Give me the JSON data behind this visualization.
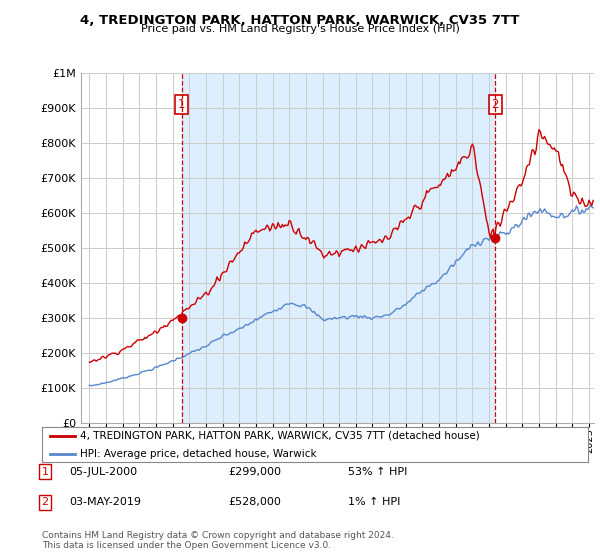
{
  "title": "4, TREDINGTON PARK, HATTON PARK, WARWICK, CV35 7TT",
  "subtitle": "Price paid vs. HM Land Registry's House Price Index (HPI)",
  "legend_line1": "4, TREDINGTON PARK, HATTON PARK, WARWICK, CV35 7TT (detached house)",
  "legend_line2": "HPI: Average price, detached house, Warwick",
  "transaction1_date": "05-JUL-2000",
  "transaction1_price": "£299,000",
  "transaction1_hpi": "53% ↑ HPI",
  "transaction2_date": "03-MAY-2019",
  "transaction2_price": "£528,000",
  "transaction2_hpi": "1% ↑ HPI",
  "footer": "Contains HM Land Registry data © Crown copyright and database right 2024.\nThis data is licensed under the Open Government Licence v3.0.",
  "hpi_color": "#5588cc",
  "price_color": "#cc0000",
  "vline_color": "#cc0000",
  "shade_color": "#ddeeff",
  "background_color": "#ffffff",
  "grid_color": "#cccccc",
  "ylim": [
    0,
    1000000
  ],
  "yticks": [
    0,
    100000,
    200000,
    300000,
    400000,
    500000,
    600000,
    700000,
    800000,
    900000,
    1000000
  ],
  "xlim_start": 1994.5,
  "xlim_end": 2025.3,
  "t1_x": 2000.54,
  "t1_y": 299000,
  "t2_x": 2019.37,
  "t2_y": 528000,
  "hpi_anchors_keys": [
    1995,
    1996,
    1997,
    1998,
    1999,
    2000,
    2001,
    2002,
    2003,
    2004,
    2005,
    2006,
    2007,
    2008,
    2009,
    2010,
    2011,
    2012,
    2013,
    2014,
    2015,
    2016,
    2017,
    2018,
    2019,
    2020,
    2021,
    2022,
    2023,
    2024,
    2025
  ],
  "hpi_anchors_vals": [
    105000,
    115000,
    128000,
    142000,
    158000,
    178000,
    198000,
    220000,
    248000,
    268000,
    295000,
    320000,
    345000,
    330000,
    295000,
    300000,
    305000,
    300000,
    310000,
    340000,
    380000,
    410000,
    460000,
    510000,
    530000,
    540000,
    580000,
    610000,
    590000,
    600000,
    615000
  ],
  "price_anchors_keys": [
    1995,
    1996,
    1997,
    1998,
    1999,
    2000,
    2001,
    2002,
    2003,
    2004,
    2005,
    2006,
    2007,
    2008,
    2009,
    2010,
    2011,
    2012,
    2013,
    2014,
    2015,
    2016,
    2017,
    2018,
    2019,
    2020,
    2021,
    2022,
    2023,
    2024,
    2025
  ],
  "price_anchors_vals": [
    175000,
    190000,
    210000,
    235000,
    260000,
    299000,
    330000,
    370000,
    430000,
    490000,
    550000,
    560000,
    570000,
    530000,
    480000,
    490000,
    500000,
    510000,
    530000,
    580000,
    640000,
    680000,
    730000,
    790000,
    528000,
    610000,
    700000,
    830000,
    780000,
    640000,
    630000
  ]
}
